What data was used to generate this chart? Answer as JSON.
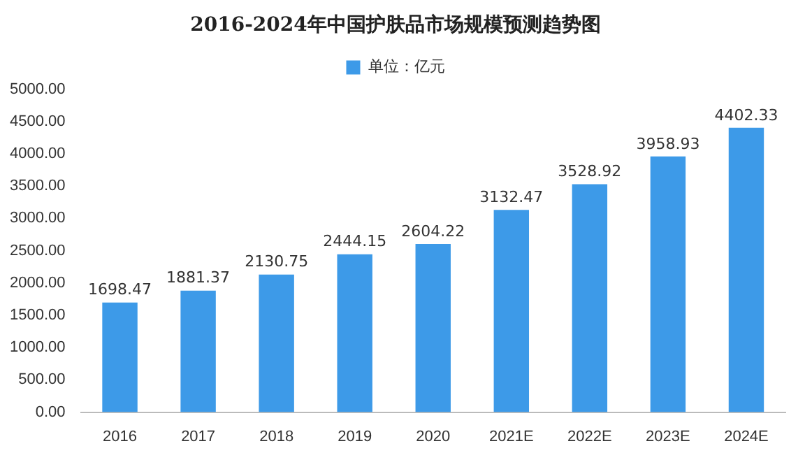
{
  "chart_data": {
    "type": "bar",
    "title": "2016-2024年中国护肤品市场规模预测趋势图",
    "categories": [
      "2016",
      "2017",
      "2018",
      "2019",
      "2020",
      "2021E",
      "2022E",
      "2023E",
      "2024E"
    ],
    "series": [
      {
        "name": "单位：亿元",
        "color": "#3d9ae8",
        "values": [
          1698.47,
          1881.37,
          2130.75,
          2444.15,
          2604.22,
          3132.47,
          3528.92,
          3958.93,
          4402.33
        ]
      }
    ],
    "ylim": [
      0,
      5000
    ],
    "yticks": [
      {
        "value": 0,
        "label": "0.00"
      },
      {
        "value": 500,
        "label": "500.00"
      },
      {
        "value": 1000,
        "label": "1000.00"
      },
      {
        "value": 1500,
        "label": "1500.00"
      },
      {
        "value": 2000,
        "label": "2000.00"
      },
      {
        "value": 2500,
        "label": "2500.00"
      },
      {
        "value": 3000,
        "label": "3000.00"
      },
      {
        "value": 3500,
        "label": "3500.00"
      },
      {
        "value": 4000,
        "label": "4000.00"
      },
      {
        "value": 4500,
        "label": "4500.00"
      },
      {
        "value": 5000,
        "label": "5000.00"
      }
    ],
    "grid": false,
    "legend": "top",
    "data_labels": true
  }
}
